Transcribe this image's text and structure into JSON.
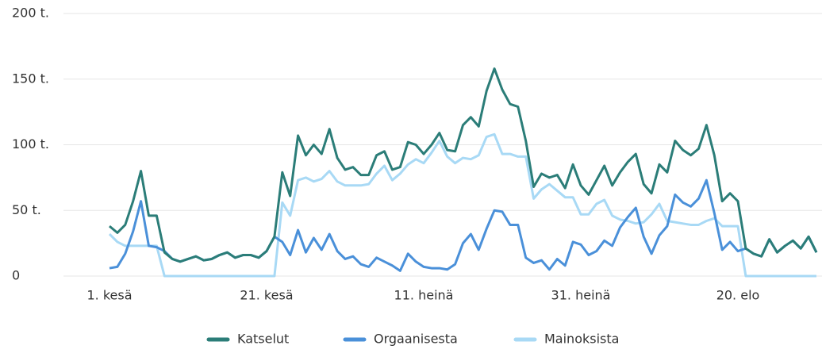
{
  "chart_data": {
    "type": "line",
    "categories": [
      "1. kesä",
      null,
      null,
      null,
      null,
      null,
      null,
      null,
      null,
      null,
      null,
      null,
      null,
      null,
      null,
      null,
      null,
      null,
      null,
      null,
      "21. kesä",
      null,
      null,
      null,
      null,
      null,
      null,
      null,
      null,
      null,
      null,
      null,
      null,
      null,
      null,
      null,
      null,
      null,
      null,
      null,
      "11. heinä",
      null,
      null,
      null,
      null,
      null,
      null,
      null,
      null,
      null,
      null,
      null,
      null,
      null,
      null,
      null,
      null,
      null,
      null,
      null,
      "31. heinä",
      null,
      null,
      null,
      null,
      null,
      null,
      null,
      null,
      null,
      null,
      null,
      null,
      null,
      null,
      null,
      null,
      null,
      null,
      null,
      "20. elo",
      null,
      null,
      null,
      null,
      null,
      null,
      null,
      null,
      null,
      null
    ],
    "series": [
      {
        "name": "Katselut",
        "color": "#2b7d78",
        "values": [
          38,
          33,
          39,
          57,
          80,
          46,
          46,
          18,
          13,
          11,
          13,
          15,
          12,
          13,
          16,
          18,
          14,
          16,
          16,
          14,
          19,
          30,
          79,
          61,
          107,
          92,
          100,
          93,
          112,
          90,
          81,
          83,
          77,
          77,
          92,
          95,
          81,
          83,
          102,
          100,
          93,
          100,
          109,
          96,
          95,
          115,
          121,
          114,
          141,
          158,
          142,
          131,
          129,
          103,
          68,
          78,
          75,
          77,
          67,
          85,
          69,
          62,
          73,
          84,
          69,
          79,
          87,
          93,
          70,
          63,
          85,
          79,
          103,
          96,
          92,
          97,
          115,
          92,
          57,
          63,
          57,
          21,
          17,
          15,
          28,
          18,
          23,
          27,
          21,
          30,
          18
        ]
      },
      {
        "name": "Orgaanisesta",
        "color": "#4a90d9",
        "values": [
          6,
          7,
          17,
          34,
          57,
          23,
          22,
          19,
          13,
          11,
          13,
          15,
          12,
          13,
          16,
          18,
          14,
          16,
          16,
          14,
          19,
          30,
          26,
          16,
          35,
          18,
          29,
          20,
          32,
          19,
          13,
          15,
          9,
          7,
          14,
          11,
          8,
          4,
          17,
          11,
          7,
          6,
          6,
          5,
          9,
          25,
          32,
          20,
          36,
          50,
          49,
          39,
          39,
          14,
          10,
          12,
          5,
          13,
          8,
          26,
          24,
          16,
          19,
          27,
          23,
          37,
          45,
          52,
          30,
          17,
          31,
          38,
          62,
          56,
          53,
          59,
          73,
          48,
          20,
          26,
          19,
          21,
          17,
          15,
          28,
          18,
          23,
          27,
          21,
          30,
          18
        ]
      },
      {
        "name": "Mainoksista",
        "color": "#a8d9f5",
        "values": [
          32,
          26,
          23,
          23,
          23,
          23,
          23,
          0,
          0,
          0,
          0,
          0,
          0,
          0,
          0,
          0,
          0,
          0,
          0,
          0,
          0,
          0,
          56,
          46,
          73,
          75,
          72,
          74,
          80,
          72,
          69,
          69,
          69,
          70,
          78,
          84,
          73,
          78,
          85,
          89,
          86,
          94,
          103,
          91,
          86,
          90,
          89,
          92,
          106,
          108,
          93,
          93,
          91,
          91,
          59,
          66,
          70,
          65,
          60,
          60,
          47,
          47,
          55,
          58,
          46,
          43,
          42,
          40,
          41,
          47,
          55,
          42,
          41,
          40,
          39,
          39,
          42,
          44,
          38,
          38,
          38,
          0,
          0,
          0,
          0,
          0,
          0,
          0,
          0,
          0,
          0
        ]
      }
    ],
    "ylim": [
      0,
      200
    ],
    "yticks": [
      0,
      {
        "value": 50,
        "label": "50 t."
      },
      {
        "value": 100,
        "label": "100 t."
      },
      {
        "value": 150,
        "label": "150 t."
      },
      {
        "value": 200,
        "label": "200 t."
      }
    ],
    "grid": true,
    "legend": "bottom"
  }
}
